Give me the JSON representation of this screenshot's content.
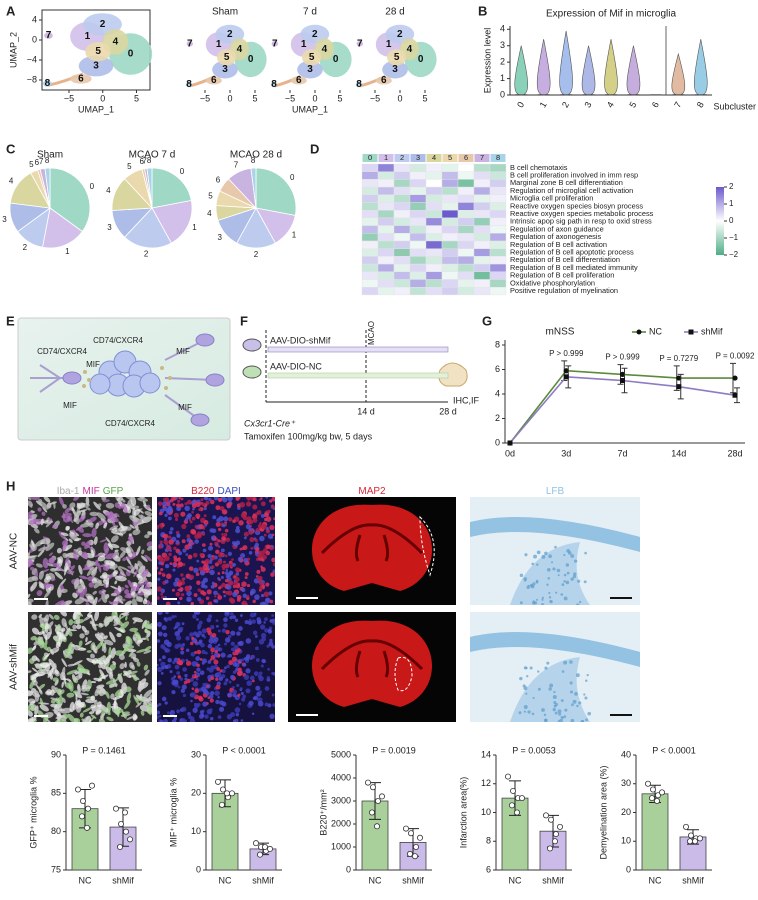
{
  "figure": {
    "panel_labels": [
      "A",
      "B",
      "C",
      "D",
      "E",
      "F",
      "G",
      "H"
    ],
    "umap": {
      "x_label": "UMAP_1",
      "y_label": "UMAP_2",
      "titles": [
        "Sham",
        "7 d",
        "28 d"
      ],
      "xlim": [
        -9,
        7
      ],
      "ylim": [
        -10,
        6
      ],
      "xticks": [
        {
          "value": -5,
          "label": "−5"
        },
        0,
        5
      ],
      "yticks": [
        4,
        0,
        {
          "value": -4,
          "label": "−4"
        },
        {
          "value": -8,
          "label": "−8"
        }
      ],
      "clusters": [
        "0",
        "1",
        "2",
        "3",
        "4",
        "5",
        "6",
        "7",
        "8"
      ]
    },
    "schematic_e": {
      "receptor": "CD74/CXCR4",
      "ligand": "MIF"
    },
    "scheme_f": {
      "vector_a": "AAV-DIO-shMif",
      "vector_b": "AAV-DIO-NC",
      "event": "MCAO",
      "day_a": "14 d",
      "day_b": "28 d",
      "readout": "IHC,IF",
      "mouse": "Cx3cr1-Cre⁺",
      "treatment": "Tamoxifen 100mg/kg bw, 5 days"
    },
    "images_h": {
      "columns": [
        {
          "words": [
            "Iba-1",
            "MIF",
            "GFP"
          ],
          "colors": [
            "#aaaaaa",
            "#c0399a",
            "#5aa34a"
          ]
        },
        {
          "words": [
            "B220",
            "DAPI"
          ],
          "colors": [
            "#d8283a",
            "#3a4fc0"
          ]
        },
        {
          "words": [
            "MAP2"
          ],
          "colors": [
            "#d8283a"
          ]
        },
        {
          "words": [
            "LFB"
          ],
          "colors": [
            "#8fc3e6"
          ]
        }
      ],
      "rows": [
        "AAV-NC",
        "AAV-shMif"
      ]
    }
  },
  "chart_data": [
    {
      "type": "violin",
      "title": "Expression of Mif in microglia",
      "y_label": "Expression level",
      "x_label": "Subcluster",
      "categories": [
        "0",
        "1",
        "2",
        "3",
        "4",
        "5",
        "6",
        "7",
        "8"
      ],
      "values": [
        3.0,
        3.4,
        3.9,
        3.0,
        3.4,
        3.0,
        0,
        2.5,
        3.4
      ],
      "colors": [
        "#6cc7a8",
        "#b89ad9",
        "#8eaee6",
        "#9aa6e0",
        "#c9c46a",
        "#b79ad6",
        "#d9b89a",
        "#d9a98a",
        "#7fc0e0"
      ],
      "ylim": [
        0,
        4.2
      ],
      "yticks": [
        0,
        1,
        2,
        3,
        4
      ]
    },
    {
      "type": "pie",
      "title": "Sham",
      "categories": [
        "0",
        "1",
        "2",
        "3",
        "4",
        "5",
        "6",
        "7",
        "8"
      ],
      "values": [
        35,
        18,
        12,
        12,
        15,
        3,
        1,
        2,
        2
      ],
      "colors": [
        "#9fd8c4",
        "#d3c0ea",
        "#bccbee",
        "#aebde8",
        "#d9d6a0",
        "#ead9ad",
        "#e7c8ab",
        "#c9b3e0",
        "#a8d4e8"
      ]
    },
    {
      "type": "pie",
      "title": "MCAO 7 d",
      "categories": [
        "0",
        "1",
        "2",
        "3",
        "4",
        "5",
        "6",
        "7",
        "8"
      ],
      "values": [
        22,
        20,
        20,
        12,
        14,
        8,
        1,
        1,
        2
      ],
      "colors": [
        "#9fd8c4",
        "#d3c0ea",
        "#bccbee",
        "#aebde8",
        "#d9d6a0",
        "#ead9ad",
        "#e7c8ab",
        "#c9b3e0",
        "#a8d4e8"
      ]
    },
    {
      "type": "pie",
      "title": "MCAO 28 d",
      "categories": [
        "0",
        "1",
        "2",
        "3",
        "4",
        "5",
        "6",
        "7",
        "8"
      ],
      "values": [
        28,
        14,
        16,
        12,
        6,
        6,
        6,
        10,
        2
      ],
      "colors": [
        "#9fd8c4",
        "#d3c0ea",
        "#bccbee",
        "#aebde8",
        "#d9d6a0",
        "#ead9ad",
        "#e7c8ab",
        "#c9b3e0",
        "#a8d4e8"
      ]
    },
    {
      "type": "heatmap",
      "columns": [
        "0",
        "1",
        "2",
        "3",
        "4",
        "5",
        "6",
        "7",
        "8"
      ],
      "column_colors": [
        "#9fd8c4",
        "#d3c0ea",
        "#bccbee",
        "#aebde8",
        "#d9d6a0",
        "#ead9ad",
        "#e7c8ab",
        "#c9b3e0",
        "#a8d4e8"
      ],
      "rows": [
        "B cell chemotaxis",
        "B cell proliferation involved in imm resp",
        "Marginal zone B cell differentiation",
        "Regulation of microglial cell activation",
        "Microglia cell proliferation",
        "Reactive oxygen species biosyn process",
        "Reactive oxygen species metabolic process",
        "Intrinsic apop sig path in resp to oxid stress",
        "Regulation of axon guidance",
        "Regulation of axonogenesis",
        "Regulation of B cell activation",
        "Regulation of B cell apoptotic process",
        "Regulation of B cell differentiation",
        "Regulation of B cell mediated immunity",
        "Regulation of B cell proliferation",
        "Oxidative phosphorylation",
        "Positive regulation of myelination"
      ],
      "values": [
        [
          0.5,
          1.5,
          0.3,
          -0.5,
          0.2,
          -0.3,
          0,
          -0.8,
          -1
        ],
        [
          1,
          -0.5,
          0.6,
          0.2,
          -0.3,
          0.8,
          -0.2,
          0.4,
          -0.6
        ],
        [
          0.3,
          0.2,
          -1,
          0.5,
          0,
          1,
          -1.5,
          0.2,
          0.6
        ],
        [
          -0.5,
          0.8,
          0.4,
          -0.3,
          0.6,
          -0.8,
          0.2,
          1,
          0.3
        ],
        [
          0.6,
          -0.4,
          -0.8,
          1.2,
          -0.5,
          0.3,
          0.4,
          -0.3,
          0.2
        ],
        [
          -0.8,
          0.3,
          0.5,
          -1.2,
          0.4,
          -0.3,
          1.5,
          0.6,
          -0.4
        ],
        [
          0.4,
          -1,
          0.2,
          0.5,
          -0.6,
          2,
          -0.4,
          0.3,
          0.5
        ],
        [
          -0.3,
          0.6,
          -0.5,
          0.3,
          1.4,
          -0.5,
          0.6,
          -1.2,
          0.2
        ],
        [
          0.8,
          -0.3,
          1,
          -0.6,
          0.2,
          0.5,
          -1,
          0.4,
          -0.2
        ],
        [
          -1.2,
          0.4,
          -0.2,
          0.8,
          -0.4,
          0.2,
          0.3,
          -0.5,
          1
        ],
        [
          0.2,
          -0.8,
          0.6,
          -0.2,
          1.8,
          -1,
          0.5,
          0.2,
          -0.4
        ],
        [
          -0.4,
          0.5,
          -1.3,
          0.4,
          0.3,
          0.6,
          -0.2,
          1.2,
          -0.8
        ],
        [
          0.6,
          0.2,
          0.4,
          -1,
          -0.5,
          0.8,
          1,
          -0.3,
          0.2
        ],
        [
          -0.6,
          1,
          -0.3,
          0.5,
          0.2,
          -0.4,
          -0.8,
          0.6,
          1.3
        ],
        [
          0.3,
          -0.5,
          0.8,
          -0.4,
          1.2,
          -0.2,
          0.4,
          -1.6,
          0.5
        ],
        [
          -0.2,
          0.4,
          -0.6,
          1,
          -0.8,
          0.5,
          -0.3,
          0.2,
          -1
        ],
        [
          0.5,
          -0.3,
          0.2,
          -0.7,
          0.4,
          0.6,
          -0.5,
          0.3,
          -0.2
        ]
      ],
      "clim": [
        -2,
        2
      ],
      "cticks": [
        2,
        1,
        0,
        {
          "value": -1,
          "label": "−1"
        },
        {
          "value": -2,
          "label": "−2"
        }
      ],
      "low_color": "#4fae86",
      "high_color": "#6a5acd"
    },
    {
      "type": "line",
      "title": "mNSS",
      "categories": [
        "0d",
        "3d",
        "7d",
        "14d",
        "28d"
      ],
      "series": [
        {
          "name": "NC",
          "color": "#5c8a3c",
          "values": [
            0,
            5.9,
            5.6,
            5.3,
            5.3
          ],
          "errors": [
            0,
            0.8,
            0.8,
            1,
            1.2
          ]
        },
        {
          "name": "shMif",
          "color": "#8e7cc3",
          "values": [
            0,
            5.4,
            5.1,
            4.6,
            3.9
          ],
          "errors": [
            0,
            0.9,
            1,
            1,
            0.6
          ]
        }
      ],
      "annotations": [
        "P > 0.999",
        "P > 0.999",
        "P = 0.7279",
        "P = 0.0092"
      ],
      "ylim": [
        0,
        8
      ],
      "yticks": [
        0,
        2,
        4,
        6,
        8
      ]
    },
    {
      "type": "bar",
      "y_label": "GFP⁺ microglia %",
      "annotation": "P = 0.1461",
      "categories": [
        "NC",
        "shMif"
      ],
      "values": [
        83,
        80.6
      ],
      "errors": [
        2.5,
        2.5
      ],
      "points": [
        [
          85.5,
          84,
          83,
          82,
          80.5,
          86
        ],
        [
          83,
          81,
          80,
          78,
          82.5,
          79
        ]
      ],
      "colors": [
        "#a9cf9b",
        "#cbbbe9"
      ],
      "ylim": [
        75,
        90
      ],
      "yticks": [
        75,
        80,
        85,
        90
      ]
    },
    {
      "type": "bar",
      "y_label": "MIF⁺ microglia %",
      "annotation": "P < 0.0001",
      "categories": [
        "NC",
        "shMif"
      ],
      "values": [
        20,
        5.5
      ],
      "errors": [
        3.5,
        1.5
      ],
      "points": [
        [
          23,
          21,
          19,
          17,
          20,
          20
        ],
        [
          7,
          6,
          5,
          4,
          6,
          5.5
        ]
      ],
      "colors": [
        "#a9cf9b",
        "#cbbbe9"
      ],
      "ylim": [
        0,
        30
      ],
      "yticks": [
        0,
        10,
        20,
        30
      ]
    },
    {
      "type": "bar",
      "y_label": "B220⁺/mm²",
      "annotation": "P = 0.0019",
      "categories": [
        "NC",
        "shMif"
      ],
      "values": [
        3000,
        1200
      ],
      "errors": [
        800,
        600
      ],
      "points": [
        [
          3800,
          3600,
          3000,
          2500,
          1900,
          3200
        ],
        [
          1800,
          1600,
          1000,
          700,
          600,
          1400
        ]
      ],
      "colors": [
        "#a9cf9b",
        "#cbbbe9"
      ],
      "ylim": [
        0,
        5000
      ],
      "yticks": [
        0,
        1000,
        2000,
        3000,
        4000,
        5000
      ]
    },
    {
      "type": "bar",
      "y_label": "Infarction area(%)",
      "annotation": "P = 0.0053",
      "categories": [
        "NC",
        "shMif"
      ],
      "values": [
        11,
        8.7
      ],
      "errors": [
        1.2,
        1.1
      ],
      "points": [
        [
          12.5,
          11.5,
          11,
          10.5,
          10,
          11
        ],
        [
          9.8,
          9.5,
          8.5,
          7.5,
          8,
          9
        ]
      ],
      "colors": [
        "#a9cf9b",
        "#cbbbe9"
      ],
      "ylim": [
        6,
        14
      ],
      "yticks": [
        6,
        8,
        10,
        12,
        14
      ]
    },
    {
      "type": "bar",
      "y_label": "Demyelination area (%)",
      "annotation": "P < 0.0001",
      "categories": [
        "NC",
        "shMif"
      ],
      "values": [
        26.5,
        11.5
      ],
      "errors": [
        3,
        2.5
      ],
      "points": [
        [
          30,
          28,
          26,
          25,
          24,
          27
        ],
        [
          15,
          12,
          11,
          10,
          10,
          11
        ]
      ],
      "colors": [
        "#a9cf9b",
        "#cbbbe9"
      ],
      "ylim": [
        0,
        40
      ],
      "yticks": [
        0,
        10,
        20,
        30,
        40
      ]
    }
  ]
}
